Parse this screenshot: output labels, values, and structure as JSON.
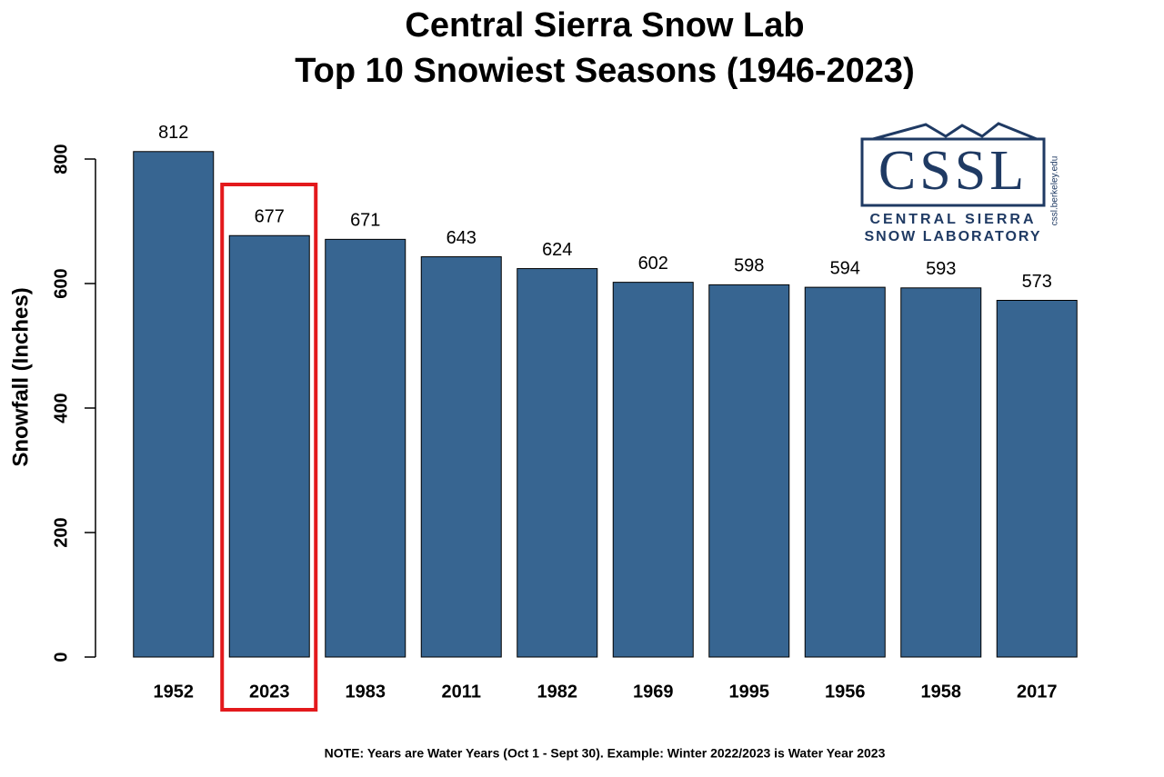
{
  "chart_data": {
    "type": "bar",
    "title": [
      "Central Sierra Snow Lab",
      "Top 10 Snowiest Seasons (1946-2023)"
    ],
    "y_label": "Snowfall (Inches)",
    "categories": [
      "1952",
      "2023",
      "1983",
      "2011",
      "1982",
      "1969",
      "1995",
      "1956",
      "1958",
      "2017"
    ],
    "values": [
      812,
      677,
      671,
      643,
      624,
      602,
      598,
      594,
      593,
      573
    ],
    "color": "#376591",
    "ylim": [
      0,
      800
    ],
    "yticks": [
      0,
      200,
      400,
      600,
      800
    ],
    "highlight": "2023",
    "highlight_color": "#e3191c",
    "note": "NOTE: Years are Water Years (Oct 1 - Sept 30). Example: Winter 2022/2023 is Water Year 2023",
    "logo": {
      "mark": "CSSL",
      "line1": "CENTRAL SIERRA",
      "line2": "SNOW LABORATORY",
      "url": "cssl.berkeley.edu"
    }
  }
}
